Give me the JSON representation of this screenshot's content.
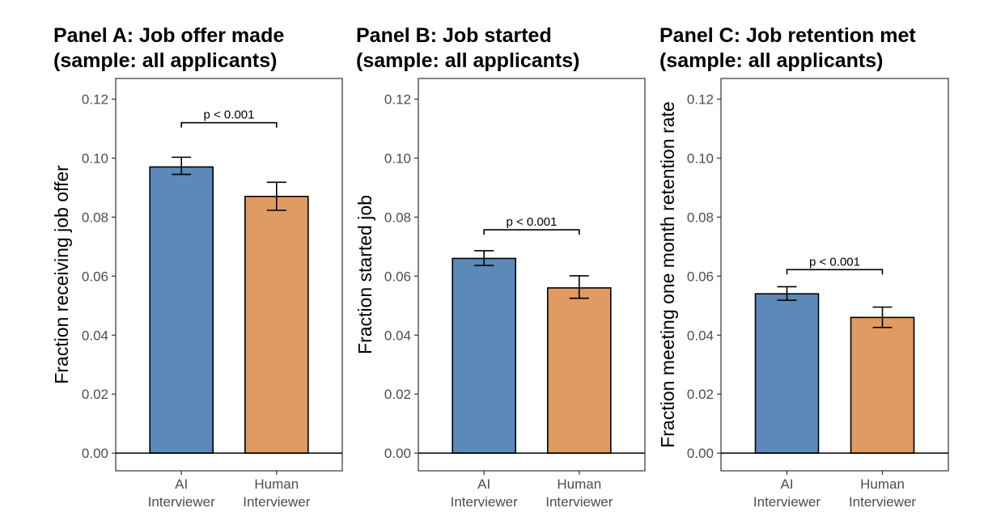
{
  "chart_data": [
    {
      "type": "bar",
      "title": [
        "Panel A: Job offer made",
        "(sample: all applicants)"
      ],
      "ylabel": "Fraction receiving job offer",
      "xlabel": "",
      "categories": [
        [
          "AI",
          "Interviewer"
        ],
        [
          "Human",
          "Interviewer"
        ]
      ],
      "values": [
        0.097,
        0.087
      ],
      "error_low": [
        0.0945,
        0.0823
      ],
      "error_high": [
        0.1003,
        0.0918
      ],
      "annotation": {
        "text": "p < 0.001",
        "y": 0.112
      },
      "ylim": [
        -0.006,
        0.127
      ],
      "yticks": [
        0.0,
        0.02,
        0.04,
        0.06,
        0.08,
        0.1,
        0.12
      ],
      "ytick_labels": [
        "0.00",
        "0.02",
        "0.04",
        "0.06",
        "0.08",
        "0.10",
        "0.12"
      ],
      "colors": [
        "#5b89ba",
        "#df9b61"
      ]
    },
    {
      "type": "bar",
      "title": [
        "Panel B: Job started",
        "(sample: all applicants)"
      ],
      "ylabel": "Fraction started job",
      "xlabel": "",
      "categories": [
        [
          "AI",
          "Interviewer"
        ],
        [
          "Human",
          "Interviewer"
        ]
      ],
      "values": [
        0.066,
        0.056
      ],
      "error_low": [
        0.0636,
        0.0525
      ],
      "error_high": [
        0.0686,
        0.0601
      ],
      "annotation": {
        "text": "p < 0.001",
        "y": 0.0757
      },
      "ylim": [
        -0.006,
        0.127
      ],
      "yticks": [
        0.0,
        0.02,
        0.04,
        0.06,
        0.08,
        0.1,
        0.12
      ],
      "ytick_labels": [
        "0.00",
        "0.02",
        "0.04",
        "0.06",
        "0.08",
        "0.10",
        "0.12"
      ],
      "colors": [
        "#5b89ba",
        "#df9b61"
      ]
    },
    {
      "type": "bar",
      "title": [
        "Panel C: Job retention met",
        "(sample: all applicants)"
      ],
      "ylabel": "Fraction meeting one month retention rate",
      "xlabel": "",
      "categories": [
        [
          "AI",
          "Interviewer"
        ],
        [
          "Human",
          "Interviewer"
        ]
      ],
      "values": [
        0.054,
        0.046
      ],
      "error_low": [
        0.0518,
        0.0426
      ],
      "error_high": [
        0.0564,
        0.0495
      ],
      "annotation": {
        "text": "p < 0.001",
        "y": 0.0622
      },
      "ylim": [
        -0.006,
        0.127
      ],
      "yticks": [
        0.0,
        0.02,
        0.04,
        0.06,
        0.08,
        0.1,
        0.12
      ],
      "ytick_labels": [
        "0.00",
        "0.02",
        "0.04",
        "0.06",
        "0.08",
        "0.10",
        "0.12"
      ],
      "colors": [
        "#5b89ba",
        "#df9b61"
      ]
    }
  ]
}
